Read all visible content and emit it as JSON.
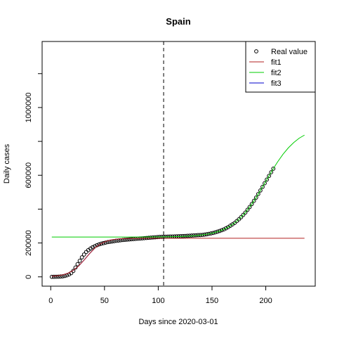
{
  "chart_data": {
    "type": "line",
    "title": "Spain",
    "x_label": "Days since 2020-03-01",
    "y_label": "Daily cases",
    "xlim": [
      -8,
      246
    ],
    "ylim": [
      -55000,
      1390000
    ],
    "xticks": [
      0,
      50,
      100,
      150,
      200
    ],
    "yticks": [
      0,
      200000,
      600000,
      1000000
    ],
    "yminor_ticks": [
      400000,
      800000,
      1200000
    ],
    "vline": 105,
    "legend": "top-right",
    "series": [
      {
        "name": "Real value",
        "mark": "points",
        "color": "#000000",
        "x": [
          1,
          3,
          5,
          7,
          9,
          11,
          13,
          15,
          17,
          19,
          21,
          23,
          25,
          27,
          29,
          31,
          33,
          35,
          37,
          39,
          41,
          43,
          45,
          47,
          49,
          51,
          53,
          55,
          57,
          59,
          61,
          63,
          65,
          67,
          69,
          71,
          73,
          75,
          77,
          79,
          81,
          83,
          85,
          87,
          89,
          91,
          93,
          95,
          97,
          99,
          101,
          103,
          105,
          107,
          109,
          111,
          113,
          115,
          117,
          119,
          121,
          123,
          125,
          127,
          129,
          131,
          133,
          135,
          137,
          139,
          141,
          143,
          145,
          147,
          149,
          151,
          153,
          155,
          157,
          159,
          161,
          163,
          165,
          167,
          169,
          171,
          173,
          175,
          177,
          179,
          181,
          183,
          185,
          187,
          189,
          191,
          193,
          195,
          197,
          199,
          201,
          203,
          205,
          207
        ],
        "values": [
          0,
          200,
          500,
          1000,
          1800,
          3000,
          5500,
          9000,
          14000,
          22000,
          35000,
          55000,
          75000,
          95000,
          115000,
          132000,
          147000,
          158000,
          167000,
          175000,
          181000,
          187000,
          192000,
          196000,
          199000,
          202000,
          205000,
          207000,
          209000,
          211000,
          213000,
          214500,
          216000,
          217500,
          219000,
          220000,
          221000,
          222500,
          223500,
          224500,
          225500,
          226500,
          227500,
          228500,
          229500,
          230500,
          231500,
          232500,
          233500,
          234500,
          235300,
          235900,
          236400,
          236900,
          237400,
          237900,
          238300,
          238700,
          239100,
          239500,
          240000,
          240800,
          241500,
          242300,
          243000,
          243800,
          244600,
          245400,
          246200,
          246900,
          247600,
          249500,
          251500,
          253800,
          256400,
          259100,
          262800,
          266500,
          270800,
          275500,
          280300,
          286800,
          293400,
          301900,
          310000,
          318200,
          329100,
          340000,
          352200,
          365800,
          379400,
          395900,
          412400,
          430100,
          449000,
          468000,
          489000,
          510100,
          531400,
          553000,
          574500,
          596100,
          617700,
          638600
        ]
      },
      {
        "name": "fit1",
        "mark": "line",
        "color": "#b22222",
        "x": [
          1,
          6,
          11,
          16,
          21,
          26,
          31,
          36,
          41,
          46,
          51,
          56,
          61,
          66,
          71,
          76,
          81,
          86,
          91,
          96,
          101,
          106,
          111,
          116,
          121,
          126,
          131,
          136,
          141,
          146,
          151,
          156,
          161,
          166,
          171,
          176,
          181,
          186,
          191,
          196,
          201,
          206,
          211,
          216,
          221,
          226,
          231,
          236
        ],
        "values": [
          3140,
          6060,
          11570,
          21400,
          38300,
          64400,
          99000,
          136500,
          169600,
          193700,
          209000,
          217800,
          222600,
          225300,
          226600,
          227300,
          227600,
          227800,
          227900,
          228000,
          228000,
          228000,
          228000,
          228000,
          228000,
          228000,
          228000,
          228000,
          228000,
          228000,
          228000,
          228000,
          228000,
          228000,
          228000,
          228000,
          228000,
          228000,
          228000,
          228000,
          228000,
          228000,
          228000,
          228000,
          228000,
          228000,
          228000,
          228000
        ]
      },
      {
        "name": "fit2",
        "mark": "line",
        "color": "#00cc00",
        "x": [
          1,
          6,
          11,
          16,
          21,
          26,
          31,
          36,
          41,
          46,
          51,
          56,
          61,
          66,
          71,
          76,
          81,
          86,
          91,
          96,
          101,
          106,
          111,
          116,
          121,
          126,
          131,
          136,
          141,
          146,
          151,
          156,
          161,
          166,
          171,
          176,
          181,
          186,
          191,
          196,
          201,
          206,
          211,
          216,
          221,
          226,
          231,
          236
        ],
        "values": [
          235000,
          235000,
          235000,
          235000,
          235000,
          235000,
          235000,
          235000,
          235000,
          235000,
          235000,
          235000,
          235000,
          235000,
          235000,
          235000,
          235000,
          235000,
          235500,
          235600,
          235900,
          236200,
          236700,
          237400,
          238400,
          239700,
          241500,
          244100,
          247600,
          252500,
          259100,
          268400,
          280300,
          296700,
          318200,
          345400,
          379400,
          420600,
          468000,
          520600,
          574500,
          628400,
          679000,
          723800,
          761900,
          793200,
          818500,
          837200
        ]
      },
      {
        "name": "fit3",
        "mark": "line",
        "color": "#0000cc",
        "x": [
          1,
          6,
          11,
          16,
          21,
          26,
          31,
          36,
          41,
          46,
          51,
          56,
          61,
          66,
          71,
          76,
          81,
          86,
          91,
          96,
          101,
          106
        ],
        "values": [
          3140,
          6060,
          11570,
          21400,
          38300,
          64400,
          99000,
          136500,
          169600,
          193700,
          209000,
          217800,
          222600,
          225300,
          226600,
          227300,
          227600,
          227800,
          227900,
          228000,
          228000,
          228000
        ]
      }
    ]
  }
}
